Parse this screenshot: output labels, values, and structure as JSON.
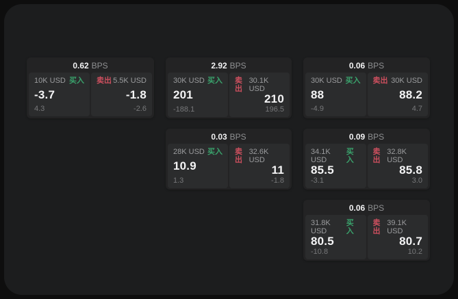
{
  "labels": {
    "unit": "BPS",
    "buy": "买入",
    "sell": "卖出"
  },
  "colors": {
    "outer_bg": "#0e0e0e",
    "panel_bg": "#1c1d1e",
    "card_bg": "#232324",
    "tile_bg": "#2b2c2d",
    "buy_green": "#3aa26c",
    "sell_red": "#cc4f5e",
    "value_white": "#f4f4f5",
    "muted_gray": "#9b9c9e"
  },
  "cards": [
    {
      "row": 1,
      "col": 1,
      "bps": "0.62",
      "buy": {
        "amount": "10K USD",
        "price": "-3.7",
        "delta": "4.3"
      },
      "sell": {
        "amount": "5.5K USD",
        "price": "-1.8",
        "delta": "-2.6"
      }
    },
    {
      "row": 1,
      "col": 2,
      "bps": "2.92",
      "buy": {
        "amount": "30K USD",
        "price": "201",
        "delta": "-188.1"
      },
      "sell": {
        "amount": "30.1K USD",
        "price": "210",
        "delta": "196.5"
      }
    },
    {
      "row": 1,
      "col": 3,
      "bps": "0.06",
      "buy": {
        "amount": "30K USD",
        "price": "88",
        "delta": "-4.9"
      },
      "sell": {
        "amount": "30K USD",
        "price": "88.2",
        "delta": "4.7"
      }
    },
    {
      "row": 2,
      "col": 2,
      "bps": "0.03",
      "buy": {
        "amount": "28K USD",
        "price": "10.9",
        "delta": "1.3"
      },
      "sell": {
        "amount": "32.6K USD",
        "price": "11",
        "delta": "-1.8"
      }
    },
    {
      "row": 2,
      "col": 3,
      "bps": "0.09",
      "buy": {
        "amount": "34.1K USD",
        "price": "85.5",
        "delta": "-3.1"
      },
      "sell": {
        "amount": "32.8K USD",
        "price": "85.8",
        "delta": "3.0"
      }
    },
    {
      "row": 3,
      "col": 3,
      "bps": "0.06",
      "buy": {
        "amount": "31.8K USD",
        "price": "80.5",
        "delta": "-10.8"
      },
      "sell": {
        "amount": "39.1K USD",
        "price": "80.7",
        "delta": "10.2"
      }
    }
  ]
}
